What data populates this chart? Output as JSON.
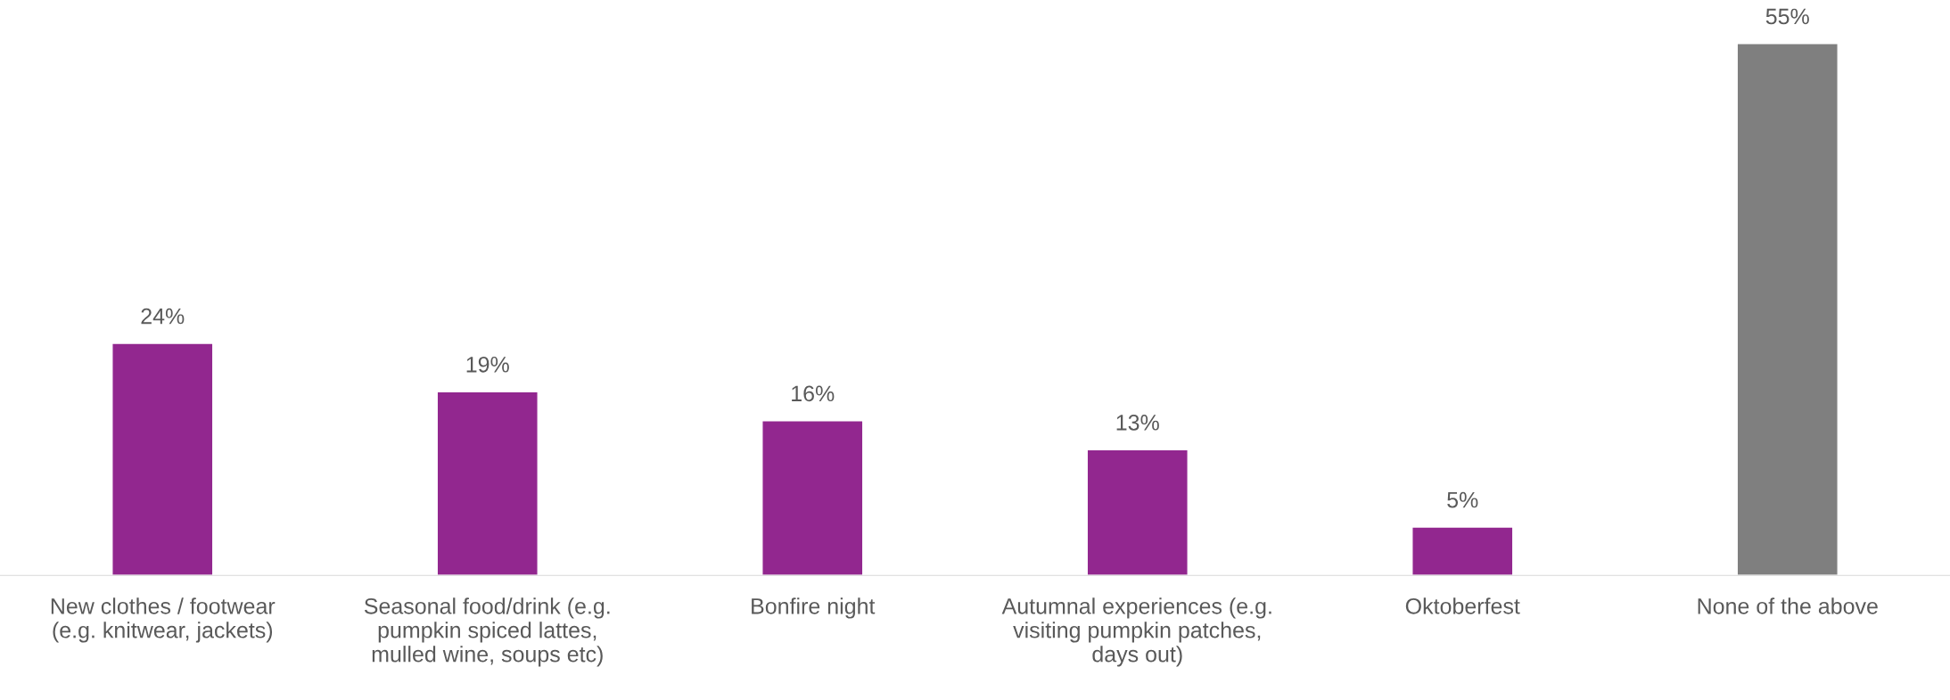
{
  "chart_data": {
    "type": "bar",
    "categories": [
      "New clothes / footwear\n(e.g. knitwear, jackets)",
      "Seasonal food/drink (e.g.\npumpkin spiced lattes,\nmulled wine, soups etc)",
      "Bonfire night",
      "Autumnal experiences (e.g.\nvisiting pumpkin patches,\ndays out)",
      "Oktoberfest",
      "None of the above"
    ],
    "values": [
      24,
      19,
      16,
      13,
      5,
      55
    ],
    "colors": [
      "#92278f",
      "#92278f",
      "#92278f",
      "#92278f",
      "#92278f",
      "#7f7f7f"
    ],
    "value_labels": [
      "24%",
      "19%",
      "16%",
      "13%",
      "5%",
      "55%"
    ],
    "grid": false,
    "legend": false
  }
}
